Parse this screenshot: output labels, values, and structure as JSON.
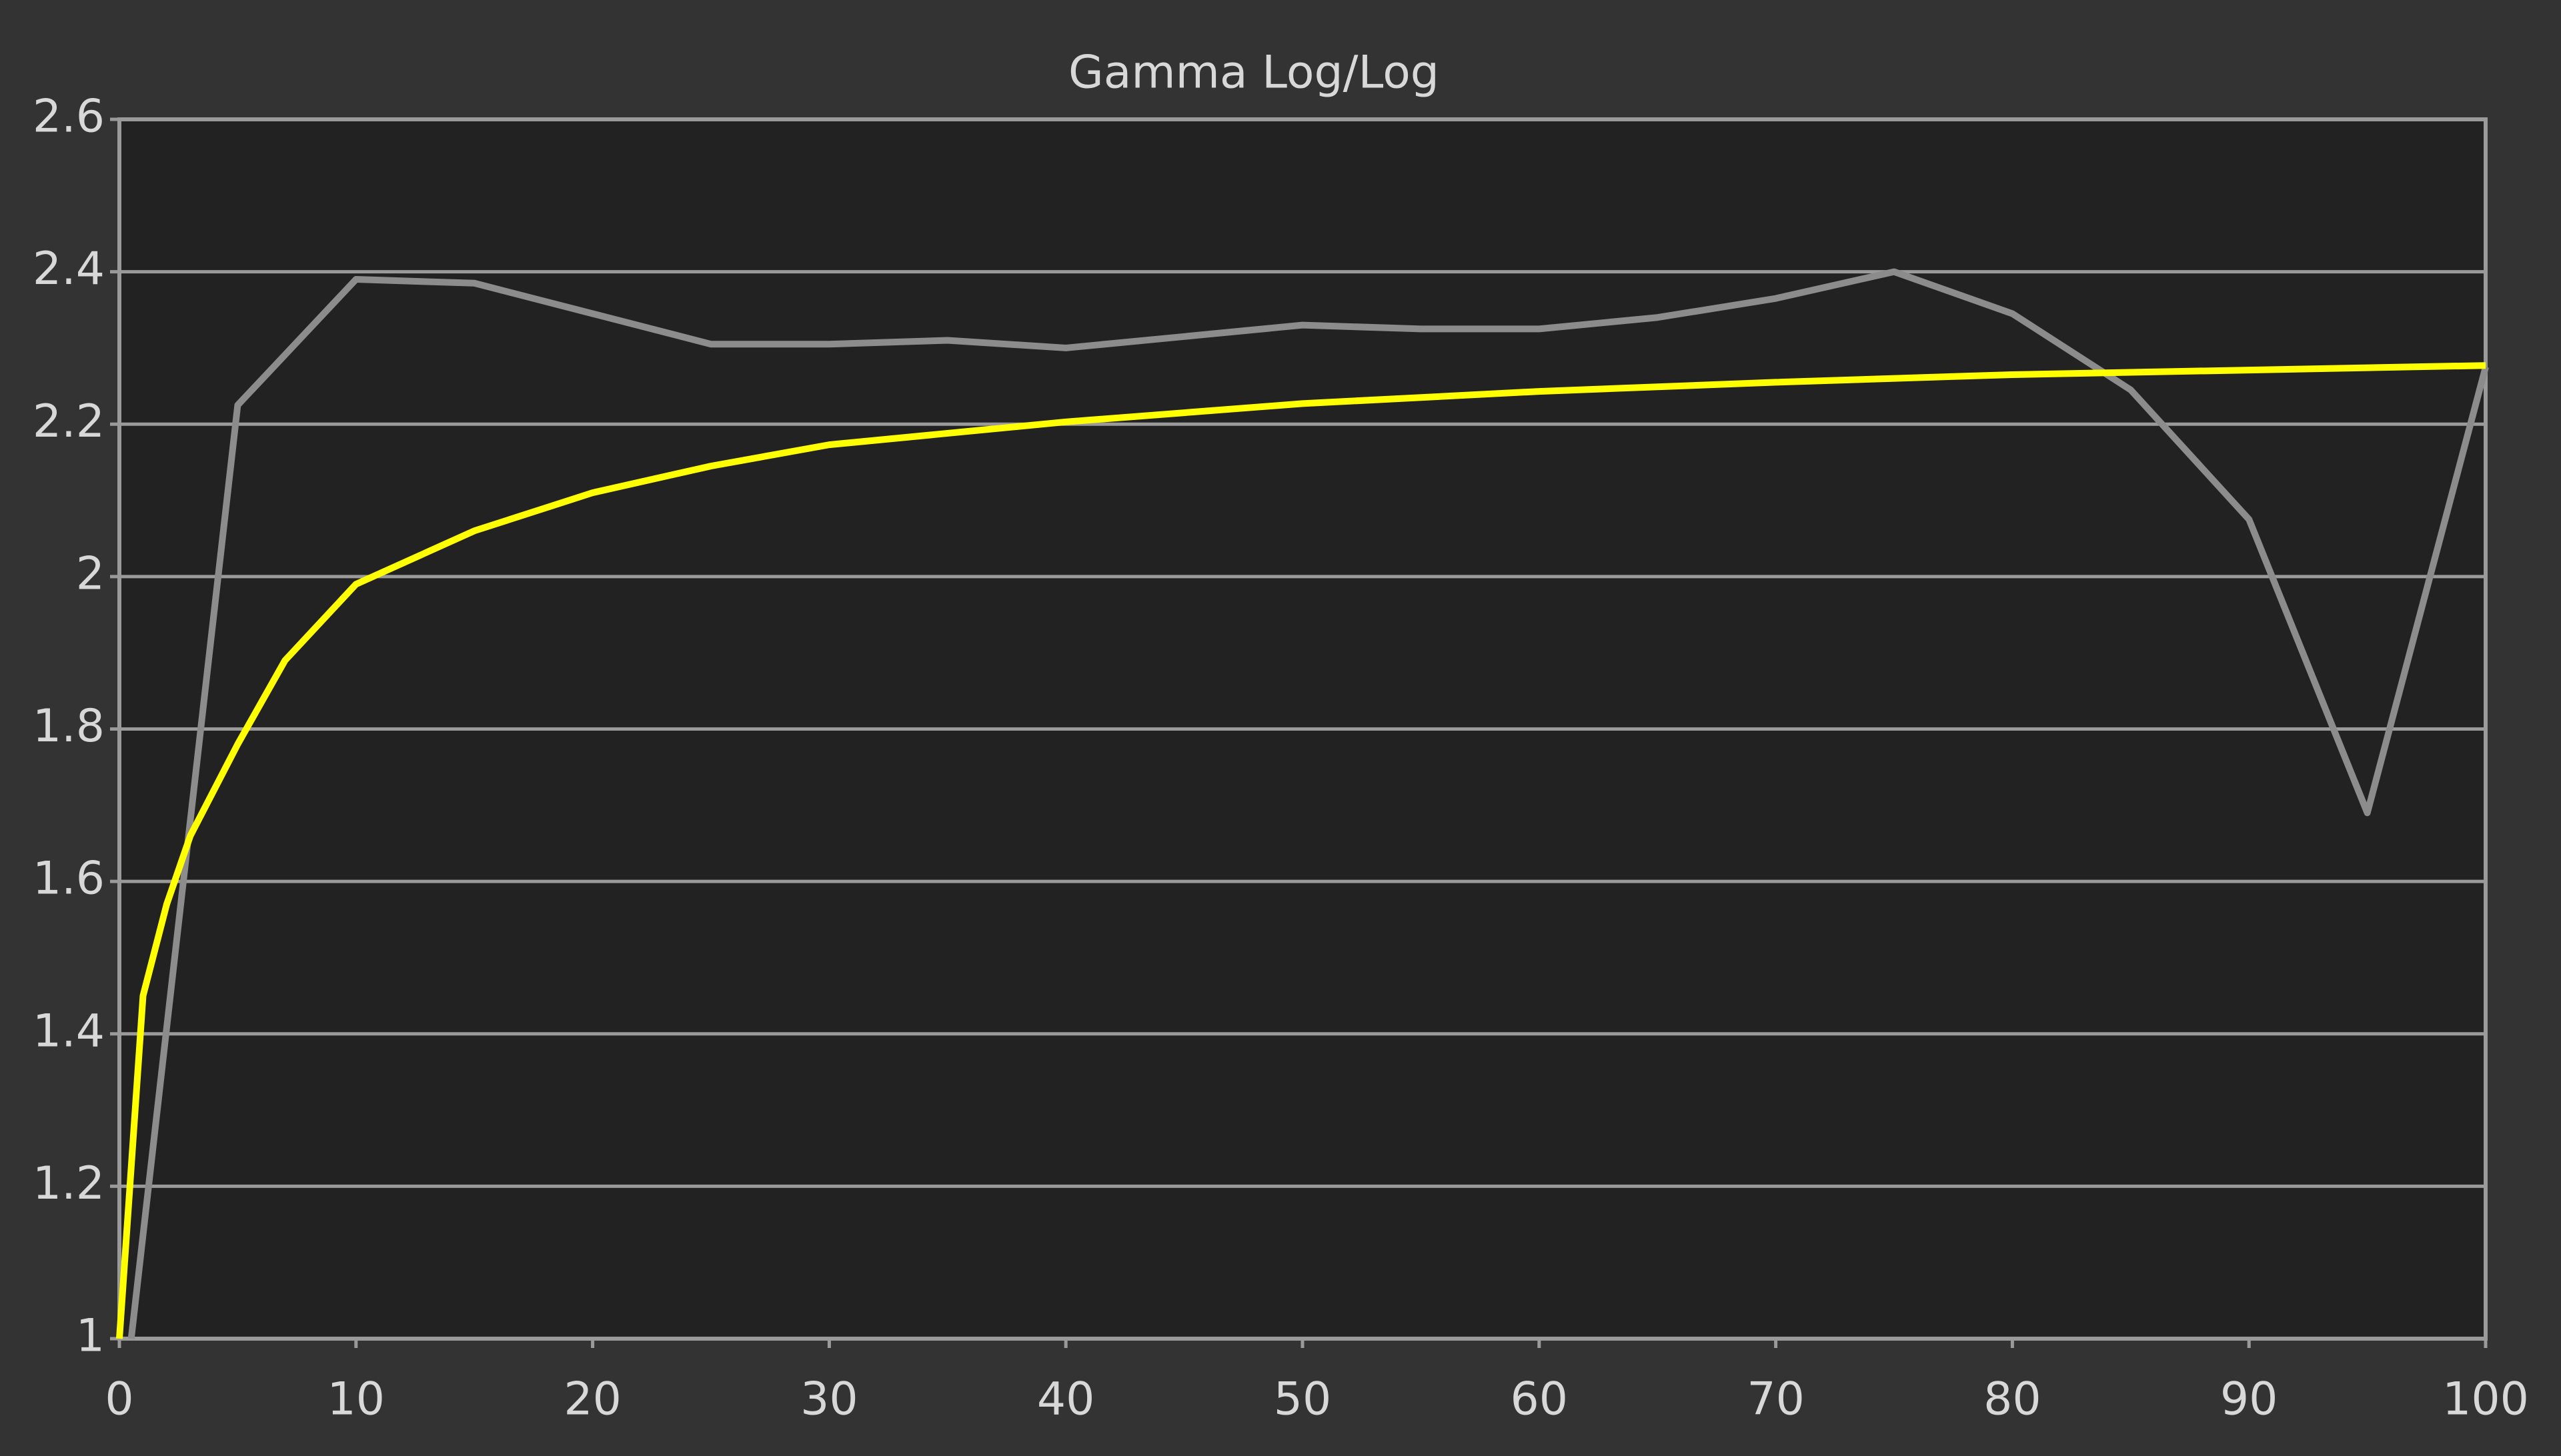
{
  "chart_data": {
    "type": "line",
    "title": "Gamma Log/Log",
    "xlim": [
      0,
      100
    ],
    "xticks": [
      0,
      10,
      20,
      30,
      40,
      50,
      60,
      70,
      80,
      90,
      100
    ],
    "ylim": [
      1,
      2.6
    ],
    "yticks": [
      1,
      1.2,
      1.4,
      1.6,
      1.8,
      2,
      2.2,
      2.4,
      2.6
    ],
    "grid": true,
    "series": [
      {
        "color": "#8c8c8c",
        "x": [
          0.5,
          5,
          10,
          15,
          20,
          25,
          30,
          35,
          40,
          45,
          50,
          55,
          60,
          65,
          70,
          75,
          80,
          85,
          90,
          95,
          100
        ],
        "values": [
          1,
          2.225,
          2.39,
          2.385,
          2.345,
          2.305,
          2.305,
          2.31,
          2.3,
          2.315,
          2.33,
          2.325,
          2.325,
          2.34,
          2.365,
          2.4,
          2.345,
          2.245,
          2.075,
          1.69,
          2.275
        ]
      },
      {
        "color": "#ffff00",
        "x": [
          0,
          1,
          2,
          3,
          5,
          7,
          10,
          15,
          20,
          25,
          30,
          40,
          50,
          60,
          70,
          80,
          90,
          100
        ],
        "values": [
          1,
          1.45,
          1.57,
          1.66,
          1.78,
          1.89,
          1.99,
          2.06,
          2.11,
          2.145,
          2.173,
          2.203,
          2.227,
          2.243,
          2.255,
          2.265,
          2.271,
          2.277
        ]
      }
    ]
  }
}
